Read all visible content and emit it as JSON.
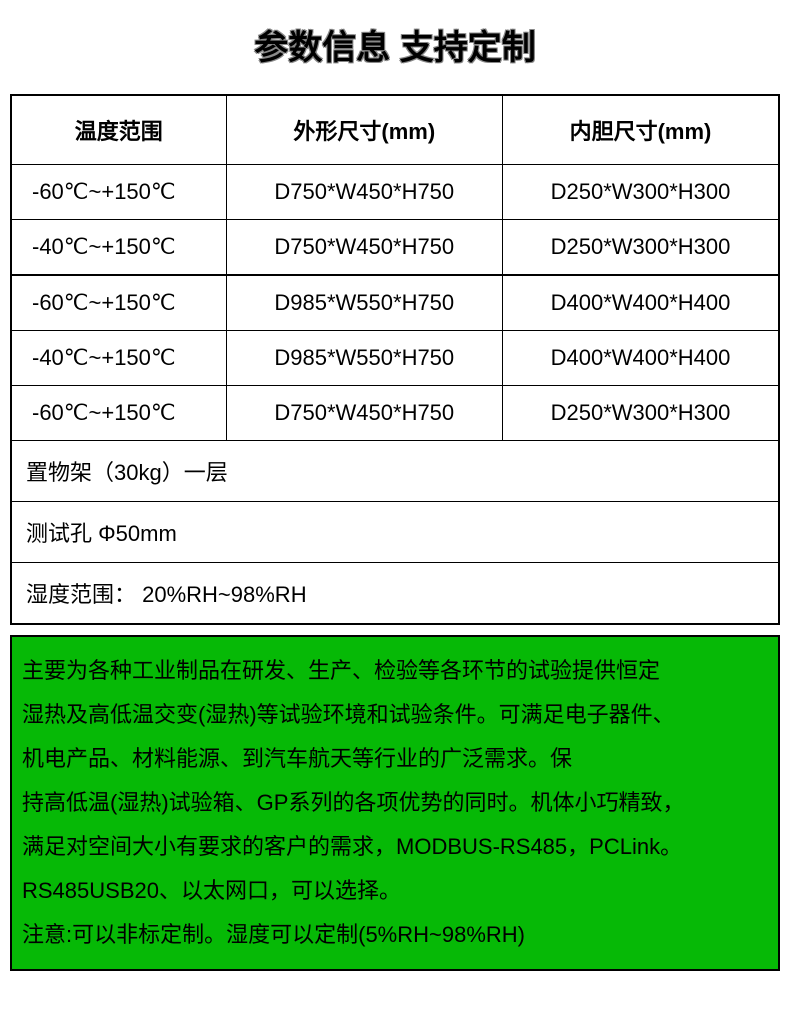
{
  "title": "参数信息 支持定制",
  "table": {
    "headers": [
      "温度范围",
      "外形尺寸(mm)",
      "内胆尺寸(mm)"
    ],
    "rows": [
      {
        "temp": "-60℃~+150℃",
        "outer": "D750*W450*H750",
        "inner": "D250*W300*H300"
      },
      {
        "temp": "-40℃~+150℃",
        "outer": "D750*W450*H750",
        "inner": "D250*W300*H300"
      },
      {
        "temp": "-60℃~+150℃",
        "outer": "D985*W550*H750",
        "inner": "D400*W400*H400"
      },
      {
        "temp": "-40℃~+150℃",
        "outer": "D985*W550*H750",
        "inner": "D400*W400*H400"
      },
      {
        "temp": "-60℃~+150℃",
        "outer": "D750*W450*H750",
        "inner": "D250*W300*H300"
      }
    ],
    "full_rows": [
      "置物架（30kg）一层",
      "测试孔 Φ50mm",
      "湿度范围： 20%RH~98%RH"
    ]
  },
  "description": {
    "background_color": "#06b906",
    "lines": [
      "主要为各种工业制品在研发、生产、检验等各环节的试验提供恒定",
      "湿热及高低温交变(湿热)等试验环境和试验条件。可满足电子器件、",
      "机电产品、材料能源、到汽车航天等行业的广泛需求。保",
      "持高低温(湿热)试验箱、GP系列的各项优势的同时。机体小巧精致，",
      "满足对空间大小有要求的客户的需求，MODBUS-RS485，PCLink。",
      "RS485USB20、以太网口，可以选择。",
      "注意:可以非标定制。湿度可以定制(5%RH~98%RH)"
    ]
  }
}
